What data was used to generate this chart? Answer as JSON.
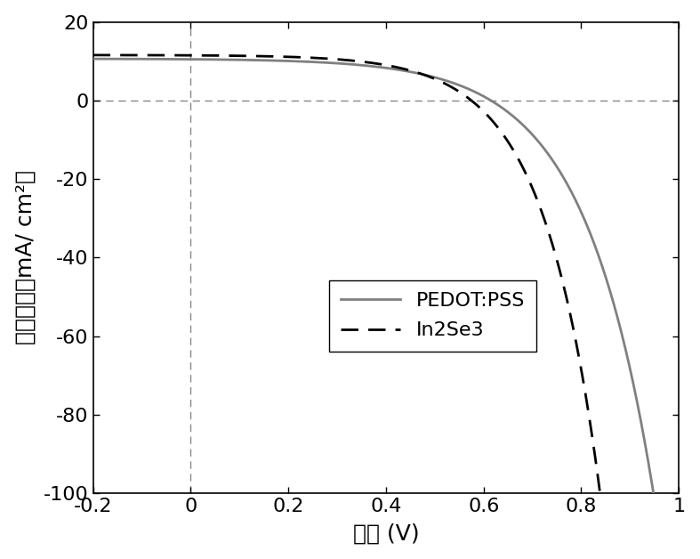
{
  "title": "",
  "xlabel": "电压 (V)",
  "ylabel": "电流密度（mA/ cm²）",
  "xlim": [
    -0.2,
    1.0
  ],
  "ylim": [
    -100,
    20
  ],
  "xticks": [
    -0.2,
    0.0,
    0.2,
    0.4,
    0.6,
    0.8,
    1.0
  ],
  "yticks": [
    -100,
    -80,
    -60,
    -40,
    -20,
    0,
    20
  ],
  "legend_labels": [
    "PEDOT:PSS",
    "In2Se3"
  ],
  "pedot_color": "#808080",
  "in2se3_color": "#000000",
  "background_color": "#ffffff",
  "pedot_Jsc": 10.5,
  "pedot_Voc": 0.615,
  "pedot_n": 5.5,
  "in2se3_Jsc": 11.5,
  "in2se3_Voc": 0.575,
  "in2se3_n": 4.5,
  "label_fontsize": 18,
  "tick_fontsize": 16,
  "legend_fontsize": 16
}
